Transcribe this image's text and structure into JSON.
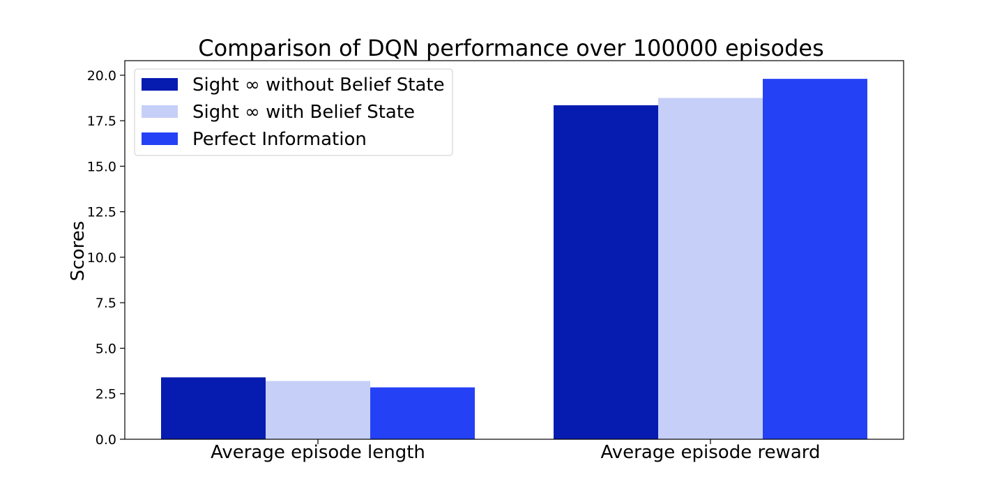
{
  "chart_data": {
    "type": "bar",
    "title": "Comparison of DQN performance over 100000 episodes",
    "xlabel": "",
    "ylabel": "Scores",
    "categories": [
      "Average episode length",
      "Average episode reward"
    ],
    "series": [
      {
        "name": "Sight ∞ without Belief State",
        "color": "#061bb0",
        "values": [
          3.4,
          18.35
        ]
      },
      {
        "name": "Sight ∞ with Belief State",
        "color": "#c6cff8",
        "values": [
          3.2,
          18.75
        ]
      },
      {
        "name": "Perfect Information",
        "color": "#2541f5",
        "values": [
          2.85,
          19.8
        ]
      }
    ],
    "ylim": [
      0,
      20.8
    ],
    "yticks": [
      0.0,
      2.5,
      5.0,
      7.5,
      10.0,
      12.5,
      15.0,
      17.5,
      20.0
    ],
    "ytick_labels": [
      "0.0",
      "2.5",
      "5.0",
      "7.5",
      "10.0",
      "12.5",
      "15.0",
      "17.5",
      "20.0"
    ],
    "grid": false,
    "legend_position": "top-left"
  }
}
